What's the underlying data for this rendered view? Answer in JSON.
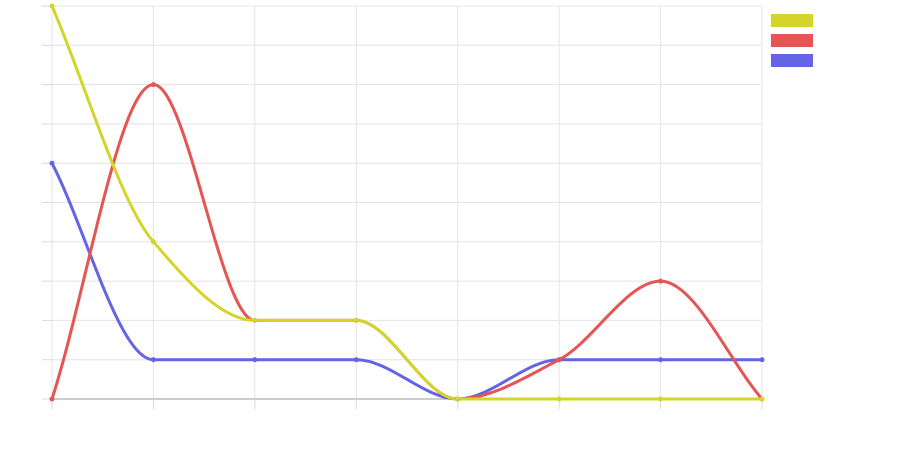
{
  "chart_data": {
    "type": "line",
    "title": "",
    "xlabel": "",
    "ylabel": "",
    "x": [
      0,
      1,
      2,
      3,
      4,
      5,
      6,
      7
    ],
    "ylim": [
      0,
      10
    ],
    "grid": true,
    "smooth": true,
    "legend": {
      "placement": "top-right",
      "entries": [
        "",
        "",
        ""
      ]
    },
    "series": [
      {
        "color": "#d4d42a",
        "values": [
          10,
          4,
          2,
          2,
          0,
          0,
          0,
          0
        ]
      },
      {
        "color": "#e65454",
        "values": [
          0,
          8,
          2,
          2,
          0,
          1,
          3,
          0
        ]
      },
      {
        "color": "#6464e6",
        "values": [
          6,
          1,
          1,
          1,
          0,
          1,
          1,
          1
        ]
      }
    ]
  }
}
